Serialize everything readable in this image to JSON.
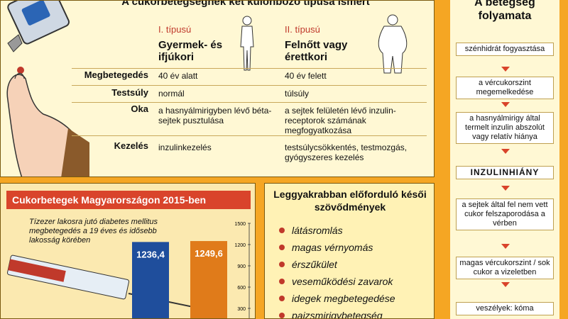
{
  "types_panel": {
    "title": "A cukorbetegségnek két különböző típusa ismert",
    "col1_type": "I. típusú",
    "col1_sub": "Gyermek- és ifjúkori",
    "col2_type": "II. típusú",
    "col2_sub": "Felnőtt vagy érettkori",
    "rows": [
      {
        "label": "Megbetegedés",
        "c1": "40 év alatt",
        "c2": "40 év felett"
      },
      {
        "label": "Testsúly",
        "c1": "normál",
        "c2": "túlsúly"
      },
      {
        "label": "Oka",
        "c1": "a hasnyálmirigyben lévő béta-sejtek pusztulása",
        "c2": "a sejtek felületén lévő inzulin-receptorok számának megfogyatkozása"
      },
      {
        "label": "Kezelés",
        "c1": "inzulinkezelés",
        "c2": "testsúlycsökkentés, testmozgás, gyógyszeres kezelés"
      }
    ]
  },
  "chart_panel": {
    "title": "Cukorbetegek Magyarországon 2015-ben",
    "note": "Tízezer lakosra jutó diabetes mellitus megbetegedés a 19 éves és idősebb lakosság körében",
    "colors": {
      "bar1": "#1f4e9c",
      "bar2": "#e07b1a"
    },
    "chart_data": {
      "type": "bar",
      "categories": [
        "",
        ""
      ],
      "values": [
        1236.4,
        1249.6
      ],
      "value_labels": [
        "1236,4",
        "1249,6"
      ],
      "title": "Cukorbetegek Magyarországon 2015-ben",
      "ylim": [
        0,
        1500
      ],
      "yticks": [
        "1500",
        "1200",
        "900",
        "600",
        "300"
      ]
    }
  },
  "complications_panel": {
    "title": "Leggyakrabban előforduló késői szövődmények",
    "items": [
      "látásromlás",
      "magas vérnyomás",
      "érszűkület",
      "veseműködési zavarok",
      "idegek megbetegedése",
      "pajzsmirigybetegség"
    ]
  },
  "process_panel": {
    "title": "A betegség folyamata",
    "steps": [
      "szénhidrát fogyasztása",
      "a vércukorszint megemelkedése",
      "a hasnyálmirigy által termelt inzulin abszolút vagy relatív hiánya",
      "INZULINHIÁNY",
      "a sejtek által fel nem vett cukor felszaporodása a vérben",
      "magas vércukorszint / sok cukor a vizeletben",
      "veszélyek: kóma"
    ]
  }
}
